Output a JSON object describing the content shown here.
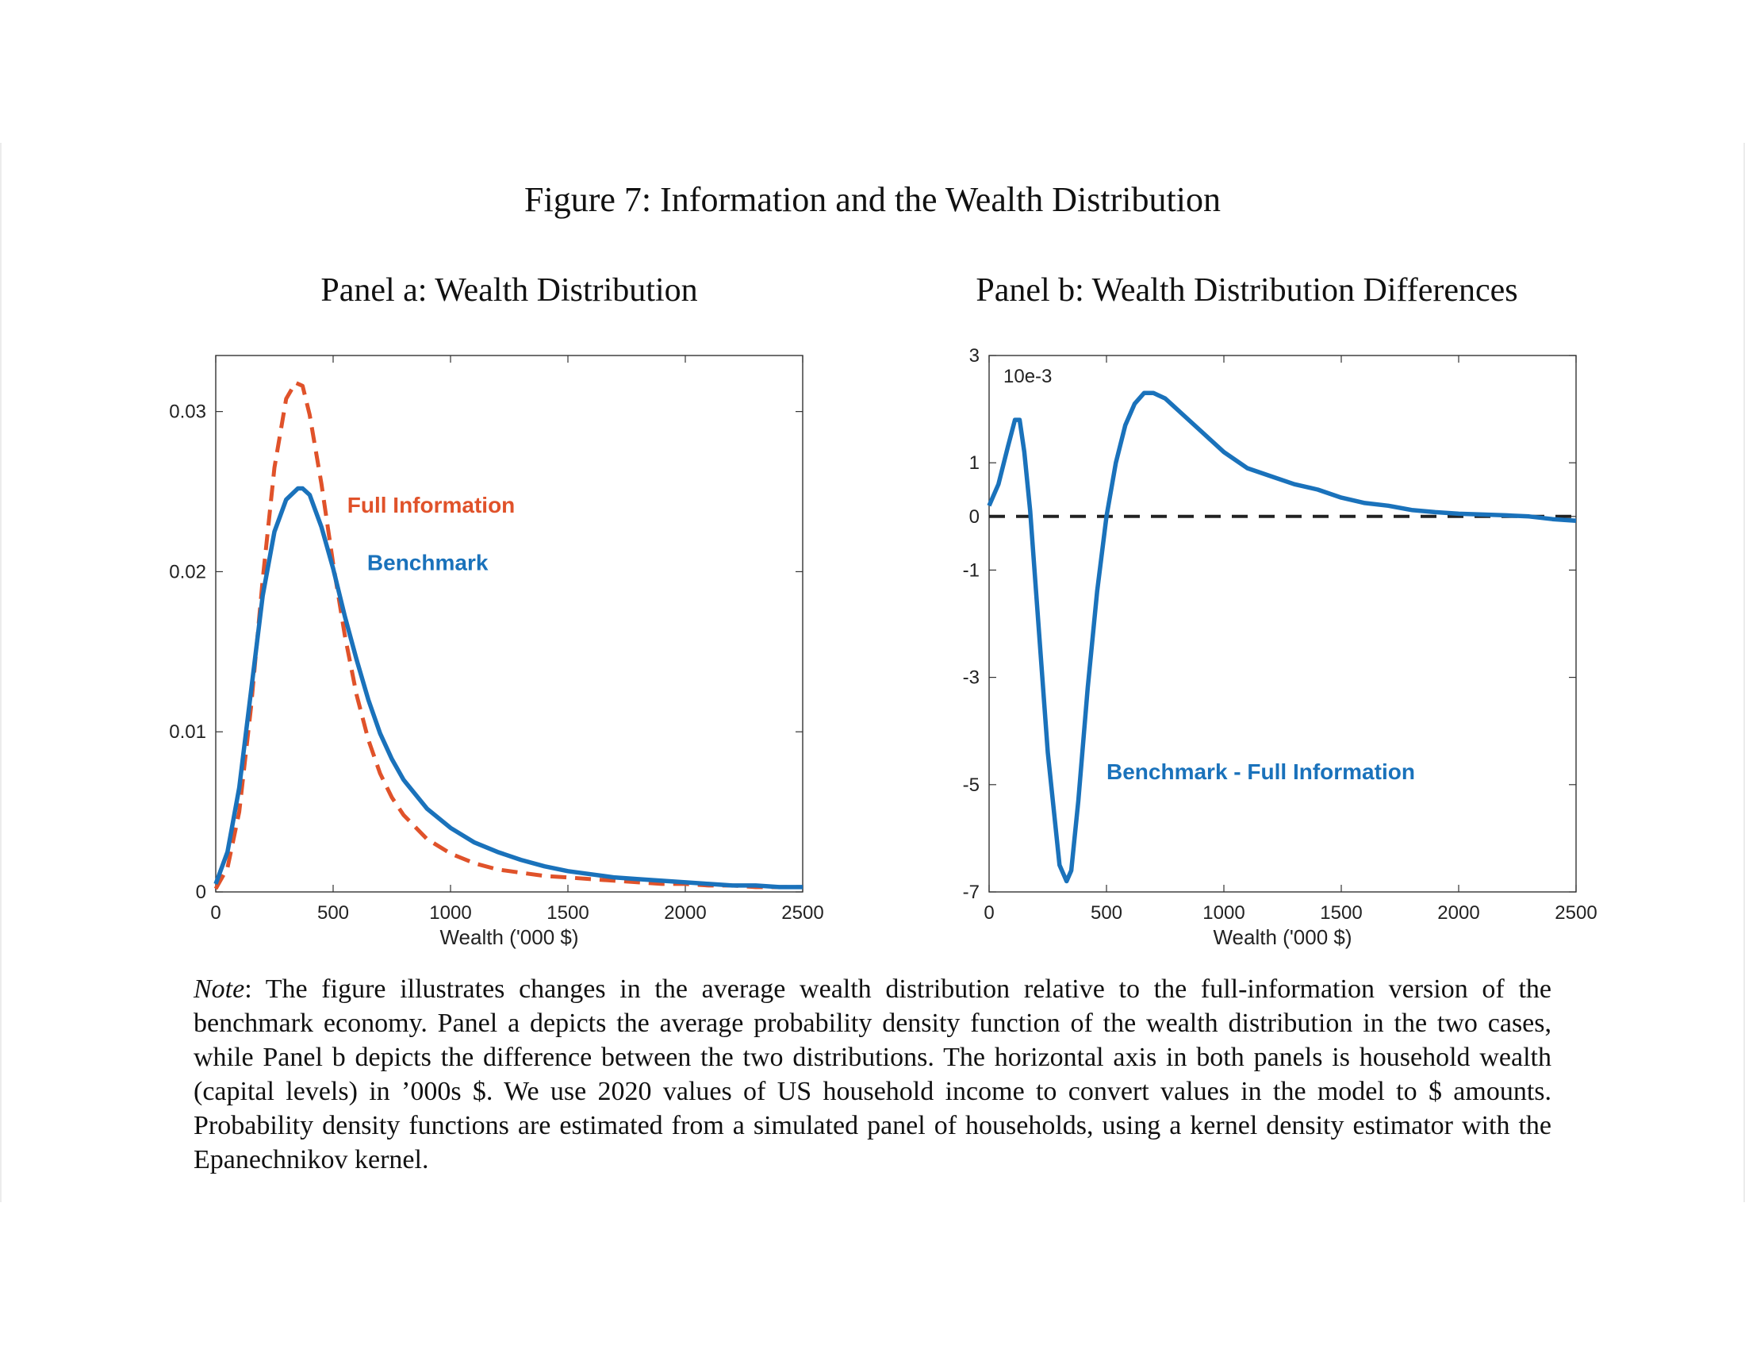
{
  "figure_title": "Figure 7: Information and the Wealth Distribution",
  "note": {
    "lead": "Note",
    "text": ": The figure illustrates changes in the average wealth distribution relative to the full-information version of the benchmark economy. Panel a depicts the average probability density function of the wealth distribution in the two cases, while Panel b depicts the difference between the two distributions. The horizontal axis in both panels is household wealth (capital levels) in ’000s $. We use 2020 values of US household income to convert values in the model to $ amounts. Probability density functions are estimated from a simulated panel of households, using a kernel density estimator with the Epanechnikov kernel."
  },
  "colors": {
    "benchmark": "#1a72bb",
    "full_information": "#e0522a",
    "zero_line": "#222222",
    "axes": "#333333"
  },
  "chart_data": [
    {
      "type": "line",
      "title": "Panel a: Wealth Distribution",
      "xlabel": "Wealth ('000 $)",
      "ylabel": "",
      "xlim": [
        0,
        2500
      ],
      "ylim": [
        0,
        0.0335
      ],
      "x_ticks": [
        0,
        500,
        1000,
        1500,
        2000,
        2500
      ],
      "y_ticks": [
        0,
        0.01,
        0.02,
        0.03
      ],
      "y_tick_labels": [
        "0",
        "0.01",
        "0.02",
        "0.03"
      ],
      "grid": false,
      "series": [
        {
          "name": "Benchmark",
          "style": "solid",
          "x": [
            0,
            50,
            100,
            150,
            200,
            250,
            300,
            350,
            370,
            400,
            450,
            500,
            550,
            600,
            650,
            700,
            750,
            800,
            900,
            1000,
            1100,
            1200,
            1300,
            1400,
            1500,
            1600,
            1700,
            1800,
            1900,
            2000,
            2100,
            2200,
            2300,
            2400,
            2500
          ],
          "y": [
            0.0005,
            0.0025,
            0.0065,
            0.0125,
            0.0185,
            0.0225,
            0.0245,
            0.0252,
            0.0252,
            0.0248,
            0.0228,
            0.0202,
            0.0172,
            0.0145,
            0.012,
            0.0099,
            0.0083,
            0.007,
            0.0052,
            0.004,
            0.0031,
            0.0025,
            0.002,
            0.0016,
            0.0013,
            0.0011,
            0.0009,
            0.0008,
            0.0007,
            0.0006,
            0.0005,
            0.0004,
            0.0004,
            0.0003,
            0.0003
          ]
        },
        {
          "name": "Full Information",
          "style": "dashed",
          "x": [
            0,
            50,
            100,
            150,
            200,
            250,
            300,
            340,
            370,
            400,
            450,
            500,
            550,
            600,
            650,
            700,
            750,
            800,
            900,
            1000,
            1100,
            1200,
            1300,
            1400,
            1500,
            1600,
            1700,
            1800,
            1900,
            2000,
            2100,
            2200,
            2300,
            2400,
            2500
          ],
          "y": [
            0.0002,
            0.0015,
            0.005,
            0.0115,
            0.0195,
            0.0265,
            0.0308,
            0.0318,
            0.0316,
            0.0298,
            0.0255,
            0.0205,
            0.016,
            0.0123,
            0.0095,
            0.0074,
            0.0059,
            0.0048,
            0.0033,
            0.0024,
            0.0018,
            0.0014,
            0.0012,
            0.001,
            0.0009,
            0.0008,
            0.0007,
            0.0006,
            0.0005,
            0.0005,
            0.0004,
            0.0004,
            0.0003,
            0.0003,
            0.0003
          ]
        }
      ]
    },
    {
      "type": "line",
      "title": "Panel b: Wealth Distribution Differences",
      "xlabel": "Wealth ('000 $)",
      "ylabel": "",
      "exponent_label": "10e-3",
      "xlim": [
        0,
        2500
      ],
      "ylim": [
        -7,
        3
      ],
      "x_ticks": [
        0,
        500,
        1000,
        1500,
        2000,
        2500
      ],
      "y_ticks": [
        -7,
        -5,
        -3,
        -1,
        0,
        1,
        3
      ],
      "zero_line": true,
      "grid": false,
      "series": [
        {
          "name": "Benchmark - Full Information",
          "style": "solid",
          "x": [
            0,
            40,
            80,
            110,
            130,
            150,
            175,
            200,
            250,
            300,
            330,
            350,
            380,
            420,
            460,
            500,
            540,
            580,
            620,
            660,
            700,
            750,
            800,
            900,
            1000,
            1100,
            1200,
            1300,
            1400,
            1500,
            1600,
            1700,
            1800,
            1900,
            2000,
            2200,
            2300,
            2400,
            2500
          ],
          "y": [
            0.2,
            0.6,
            1.3,
            1.8,
            1.8,
            1.2,
            0.1,
            -1.4,
            -4.4,
            -6.5,
            -6.8,
            -6.6,
            -5.3,
            -3.2,
            -1.4,
            0.0,
            1.0,
            1.7,
            2.1,
            2.3,
            2.3,
            2.2,
            2.0,
            1.6,
            1.2,
            0.9,
            0.75,
            0.6,
            0.5,
            0.35,
            0.25,
            0.2,
            0.12,
            0.08,
            0.05,
            0.02,
            0.0,
            -0.05,
            -0.08
          ]
        }
      ]
    }
  ]
}
